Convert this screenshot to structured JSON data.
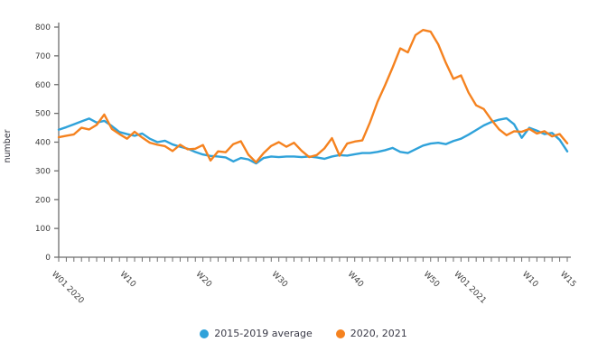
{
  "page": {
    "background": "#ffffff"
  },
  "colors": {
    "axis": "#6e6e6e",
    "tick_text": "#3f3f3f",
    "legend_text": "#3a3a47",
    "average_series": "#2fa2da",
    "actual_series": "#f5821f"
  },
  "legend": {
    "items": [
      {
        "label": "2015-2019 average",
        "color": "#2fa2da"
      },
      {
        "label": "2020, 2021",
        "color": "#f5821f"
      }
    ]
  },
  "chart_data": {
    "type": "line",
    "title": "",
    "xlabel": "",
    "ylabel": "number",
    "ylim": [
      0,
      800
    ],
    "yticks": [
      0,
      100,
      200,
      300,
      400,
      500,
      600,
      700,
      800
    ],
    "grid": false,
    "legend_position": "bottom-center",
    "x_unit": "ISO week",
    "x_weeks": 68,
    "xtick_positions": [
      1,
      10,
      20,
      30,
      40,
      50,
      54,
      63,
      68
    ],
    "xtick_labels": [
      "W01 2020",
      "W10",
      "W20",
      "W30",
      "W40",
      "W50",
      "W01 2021",
      "W10",
      "W15"
    ],
    "series": [
      {
        "name": "2015-2019 average",
        "color": "#2fa2da",
        "values": [
          443,
          452,
          462,
          472,
          482,
          468,
          474,
          456,
          435,
          428,
          422,
          430,
          412,
          400,
          405,
          392,
          384,
          377,
          366,
          357,
          352,
          350,
          347,
          333,
          345,
          340,
          326,
          345,
          350,
          348,
          350,
          350,
          348,
          350,
          347,
          342,
          350,
          355,
          353,
          358,
          362,
          362,
          366,
          372,
          380,
          366,
          362,
          375,
          388,
          395,
          398,
          393,
          404,
          412,
          426,
          442,
          458,
          470,
          478,
          483,
          462,
          415,
          450,
          440,
          428,
          432,
          408,
          368
        ]
      },
      {
        "name": "2020, 2021",
        "color": "#f5821f",
        "values": [
          417,
          422,
          427,
          450,
          444,
          460,
          496,
          446,
          428,
          412,
          436,
          416,
          398,
          391,
          386,
          369,
          391,
          375,
          377,
          390,
          336,
          368,
          365,
          393,
          403,
          356,
          330,
          362,
          387,
          400,
          384,
          398,
          370,
          348,
          355,
          378,
          414,
          353,
          395,
          402,
          406,
          468,
          540,
          598,
          660,
          726,
          712,
          772,
          790,
          784,
          740,
          676,
          620,
          632,
          572,
          528,
          515,
          478,
          445,
          424,
          438,
          436,
          446,
          430,
          438,
          420,
          428,
          396
        ]
      }
    ]
  }
}
